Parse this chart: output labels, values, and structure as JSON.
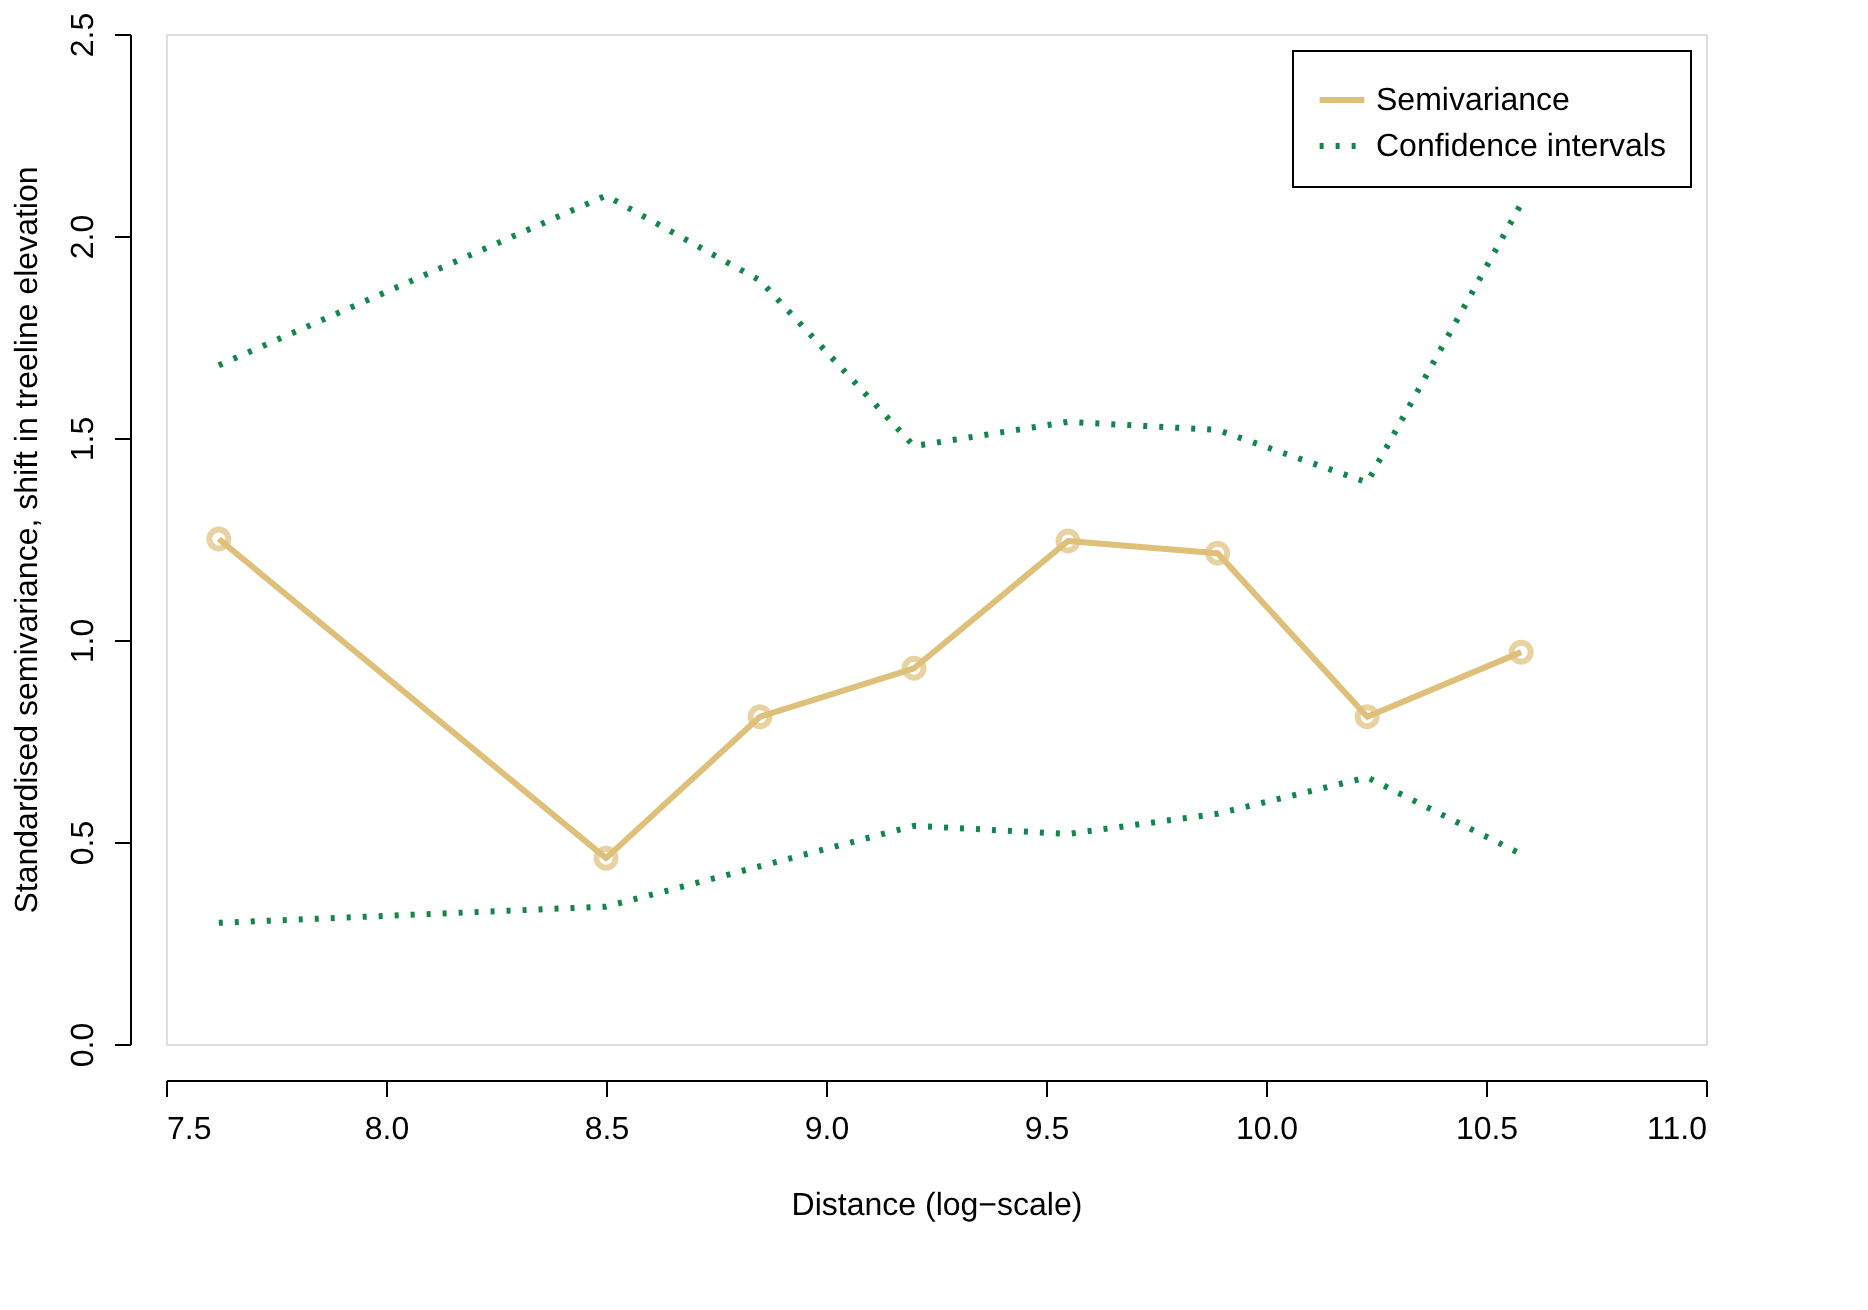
{
  "chart_data": {
    "type": "line",
    "xlabel": "Distance (log−scale)",
    "ylabel": "Standardised semivariance, shift in treeline elevation",
    "x": [
      7.62,
      8.5,
      8.85,
      9.2,
      9.55,
      9.89,
      10.23,
      10.58
    ],
    "series": [
      {
        "name": "Semivariance",
        "color": "#dfc07a",
        "values": [
          1.25,
          0.46,
          0.81,
          0.93,
          1.245,
          1.215,
          0.81,
          0.97
        ],
        "marker": "circle",
        "line_style": "solid"
      },
      {
        "name": "Confidence intervals",
        "color": "#11874a",
        "values": [
          1.68,
          2.1,
          1.89,
          1.48,
          1.54,
          1.52,
          1.39,
          2.08
        ],
        "marker": "none",
        "line_style": "dotted"
      },
      {
        "color": "#11874a",
        "values": [
          0.3,
          0.34,
          0.44,
          0.54,
          0.52,
          0.57,
          0.66,
          0.47
        ],
        "marker": "none",
        "line_style": "dotted"
      }
    ],
    "xlim": [
      7.5,
      11.0
    ],
    "xticks": [
      7.5,
      {
        "value": 8,
        "label": "8.0"
      },
      8.5,
      {
        "value": 9,
        "label": "9.0"
      },
      9.5,
      {
        "value": 10,
        "label": "10.0"
      },
      10.5,
      {
        "value": 11,
        "label": "11.0"
      }
    ],
    "ylim": [
      0,
      2.5
    ],
    "yticks": [
      {
        "value": 0,
        "label": "0.0"
      },
      0.5,
      {
        "value": 1,
        "label": "1.0"
      },
      1.5,
      {
        "value": 2,
        "label": "2.0"
      },
      2.5
    ],
    "grid": false,
    "legend": "top right"
  }
}
